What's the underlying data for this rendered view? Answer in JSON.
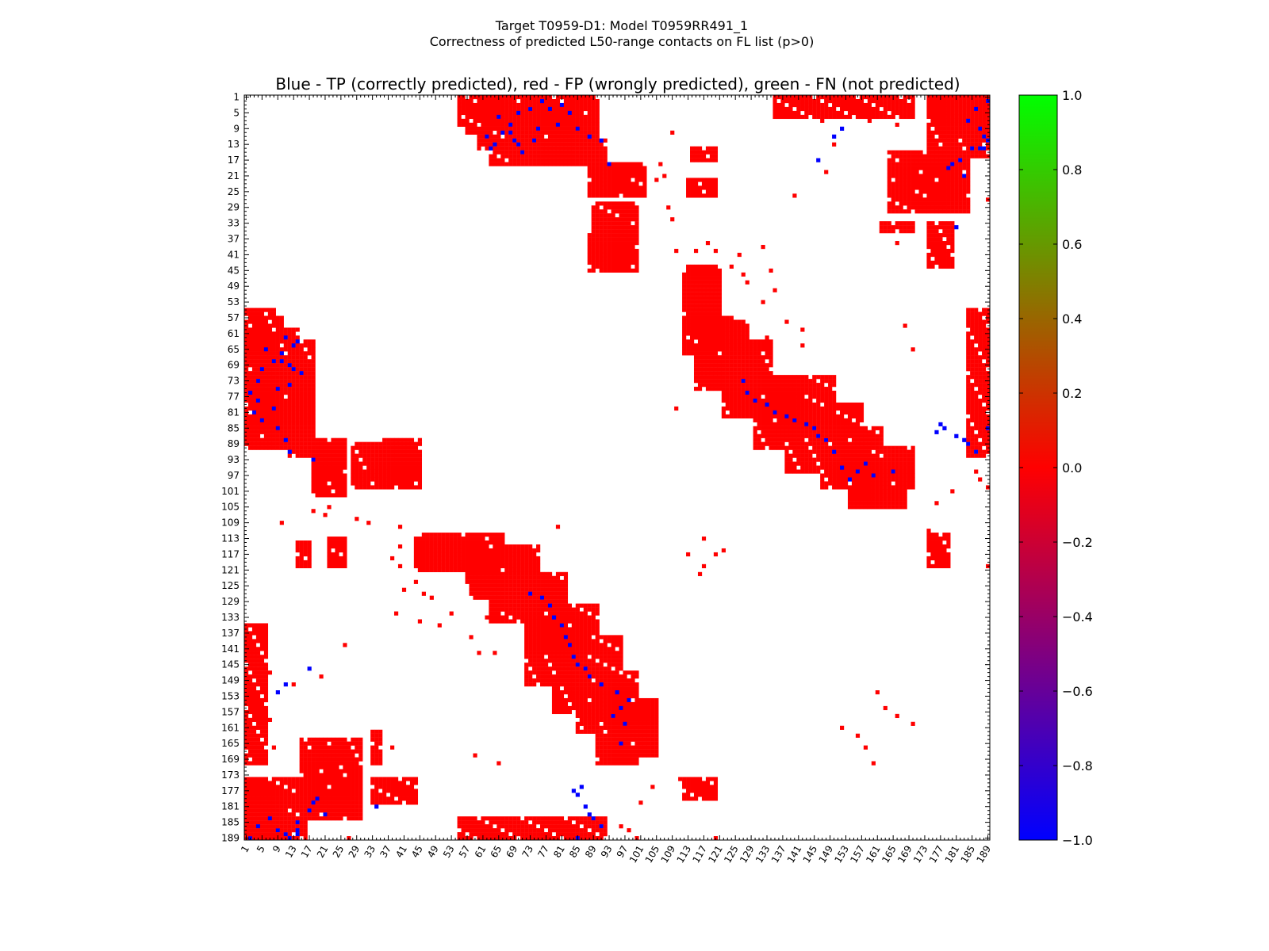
{
  "chart_data": {
    "type": "heatmap",
    "title_line1": "Target T0959-D1: Model T0959RR491_1",
    "title_line2": "Correctness of predicted L50-range contacts on FL list (p>0)",
    "subtitle": "Blue - TP (correctly predicted), red - FP (wrongly predicted), green - FN (not predicted)",
    "xlabel": "",
    "ylabel": "",
    "residue_range": [
      1,
      189
    ],
    "tick_labels": [
      "1",
      "5",
      "9",
      "13",
      "17",
      "21",
      "25",
      "29",
      "33",
      "37",
      "41",
      "45",
      "49",
      "53",
      "57",
      "61",
      "65",
      "69",
      "73",
      "77",
      "81",
      "85",
      "89",
      "93",
      "97",
      "101",
      "105",
      "109",
      "113",
      "117",
      "121",
      "125",
      "129",
      "133",
      "137",
      "141",
      "145",
      "149",
      "153",
      "157",
      "161",
      "165",
      "169",
      "173",
      "177",
      "181",
      "185",
      "189"
    ],
    "colorbar": {
      "min": -1.0,
      "max": 1.0,
      "ticks": [
        "1.0",
        "0.8",
        "0.6",
        "0.4",
        "0.2",
        "0.0",
        "−0.2",
        "−0.4",
        "−0.6",
        "−0.8",
        "−1.0"
      ],
      "colors": [
        "#0000ff",
        "#ff0000",
        "#00ff00"
      ]
    },
    "legend": {
      "tp_color": "#0000ff",
      "fp_color": "#ff0000",
      "fn_color": "#00ff00"
    },
    "fp_regions": [
      [
        61,
        68,
        1,
        9
      ],
      [
        65,
        86,
        3,
        14
      ],
      [
        68,
        90,
        6,
        18
      ],
      [
        90,
        100,
        18,
        25
      ],
      [
        90,
        98,
        32,
        44
      ],
      [
        89,
        93,
        36,
        42
      ],
      [
        114,
        120,
        14,
        17
      ],
      [
        113,
        120,
        22,
        26
      ],
      [
        113,
        121,
        44,
        60
      ],
      [
        116,
        128,
        58,
        72
      ],
      [
        122,
        134,
        63,
        82
      ],
      [
        130,
        142,
        72,
        90
      ],
      [
        138,
        150,
        80,
        96
      ],
      [
        147,
        158,
        85,
        100
      ],
      [
        154,
        168,
        93,
        105
      ],
      [
        162,
        170,
        94,
        98
      ],
      [
        174,
        182,
        1,
        30
      ],
      [
        176,
        190,
        1,
        16
      ],
      [
        166,
        170,
        18,
        26
      ],
      [
        162,
        170,
        33,
        35
      ],
      [
        174,
        180,
        33,
        44
      ],
      [
        174,
        179,
        112,
        120
      ],
      [
        184,
        190,
        55,
        92
      ],
      [
        1,
        8,
        55,
        61
      ],
      [
        1,
        10,
        57,
        90
      ],
      [
        1,
        6,
        55,
        58
      ],
      [
        9,
        14,
        60,
        90
      ],
      [
        13,
        18,
        63,
        92
      ],
      [
        18,
        26,
        88,
        102
      ],
      [
        32,
        38,
        90,
        100
      ],
      [
        36,
        45,
        88,
        100
      ],
      [
        45,
        60,
        112,
        120
      ],
      [
        57,
        66,
        112,
        124
      ],
      [
        63,
        75,
        115,
        132
      ],
      [
        72,
        82,
        125,
        150
      ],
      [
        79,
        87,
        136,
        157
      ],
      [
        85,
        95,
        150,
        162
      ],
      [
        90,
        100,
        152,
        170
      ],
      [
        94,
        105,
        155,
        168
      ],
      [
        1,
        6,
        135,
        170
      ],
      [
        15,
        30,
        164,
        184
      ],
      [
        1,
        10,
        176,
        190
      ],
      [
        17,
        25,
        174,
        182
      ],
      [
        28,
        38,
        89,
        100
      ]
    ],
    "sparse_fp_points": [
      [
        21,
        96
      ],
      [
        22,
        105
      ],
      [
        12,
        92
      ],
      [
        10,
        109
      ],
      [
        28,
        93
      ],
      [
        38,
        118
      ],
      [
        40,
        120
      ],
      [
        40,
        115
      ],
      [
        46,
        127
      ],
      [
        51,
        120
      ],
      [
        53,
        121
      ],
      [
        55,
        121
      ],
      [
        48,
        128
      ],
      [
        62,
        133
      ],
      [
        80,
        110
      ],
      [
        82,
        130
      ],
      [
        64,
        142
      ],
      [
        71,
        190
      ],
      [
        106,
        18
      ],
      [
        107,
        21
      ],
      [
        108,
        29
      ],
      [
        109,
        32
      ],
      [
        110,
        40
      ],
      [
        120,
        189
      ],
      [
        132,
        39
      ],
      [
        134,
        45
      ],
      [
        140,
        26
      ],
      [
        148,
        20
      ],
      [
        150,
        13
      ],
      [
        153,
        4
      ],
      [
        159,
        7
      ],
      [
        166,
        38
      ],
      [
        168,
        59
      ],
      [
        170,
        65
      ],
      [
        185,
        1
      ],
      [
        186,
        4
      ],
      [
        187,
        11
      ],
      [
        188,
        15
      ],
      [
        189,
        27
      ],
      [
        2,
        183
      ],
      [
        4,
        177
      ],
      [
        6,
        170
      ],
      [
        8,
        166
      ],
      [
        111,
        174
      ],
      [
        112,
        178
      ],
      [
        114,
        176
      ],
      [
        104,
        176
      ],
      [
        101,
        180
      ],
      [
        100,
        189
      ],
      [
        98,
        187
      ],
      [
        96,
        186
      ],
      [
        143,
        3
      ],
      [
        145,
        4
      ],
      [
        147,
        7
      ],
      [
        117,
        113
      ],
      [
        120,
        117
      ],
      [
        122,
        116
      ],
      [
        124,
        44
      ],
      [
        126,
        41
      ],
      [
        160,
        170
      ],
      [
        158,
        166
      ],
      [
        156,
        163
      ],
      [
        152,
        161
      ],
      [
        50,
        135
      ],
      [
        53,
        132
      ],
      [
        58,
        138
      ],
      [
        60,
        142
      ]
    ],
    "tp_points": [
      [
        76,
        2
      ],
      [
        81,
        3
      ],
      [
        83,
        5
      ],
      [
        85,
        9
      ],
      [
        65,
        6
      ],
      [
        70,
        5
      ],
      [
        73,
        4
      ],
      [
        66,
        10
      ],
      [
        64,
        13
      ],
      [
        62,
        11
      ],
      [
        68,
        8
      ],
      [
        88,
        11
      ],
      [
        91,
        12
      ],
      [
        93,
        18
      ],
      [
        68,
        10
      ],
      [
        78,
        4
      ],
      [
        75,
        9
      ],
      [
        71,
        15
      ],
      [
        69,
        12
      ],
      [
        63,
        14
      ],
      [
        80,
        8
      ],
      [
        127,
        73
      ],
      [
        128,
        76
      ],
      [
        130,
        78
      ],
      [
        133,
        79
      ],
      [
        135,
        81
      ],
      [
        138,
        82
      ],
      [
        140,
        83
      ],
      [
        143,
        84
      ],
      [
        145,
        85
      ],
      [
        146,
        87
      ],
      [
        148,
        88
      ],
      [
        150,
        91
      ],
      [
        152,
        95
      ],
      [
        154,
        98
      ],
      [
        156,
        96
      ],
      [
        158,
        94
      ],
      [
        160,
        97
      ],
      [
        165,
        96
      ],
      [
        180,
        18
      ],
      [
        182,
        17
      ],
      [
        186,
        4
      ],
      [
        187,
        9
      ],
      [
        188,
        11
      ],
      [
        187,
        14
      ],
      [
        184,
        7
      ],
      [
        189,
        2
      ],
      [
        179,
        19
      ],
      [
        152,
        9
      ],
      [
        150,
        11
      ],
      [
        146,
        17
      ],
      [
        185,
        14
      ],
      [
        181,
        34
      ],
      [
        183,
        21
      ],
      [
        176,
        86
      ],
      [
        177,
        84
      ],
      [
        178,
        85
      ],
      [
        181,
        87
      ],
      [
        183,
        88
      ],
      [
        184,
        89
      ],
      [
        186,
        91
      ],
      [
        189,
        12
      ],
      [
        188,
        14
      ],
      [
        189,
        85
      ],
      [
        70,
        13
      ],
      [
        74,
        12
      ]
    ]
  }
}
